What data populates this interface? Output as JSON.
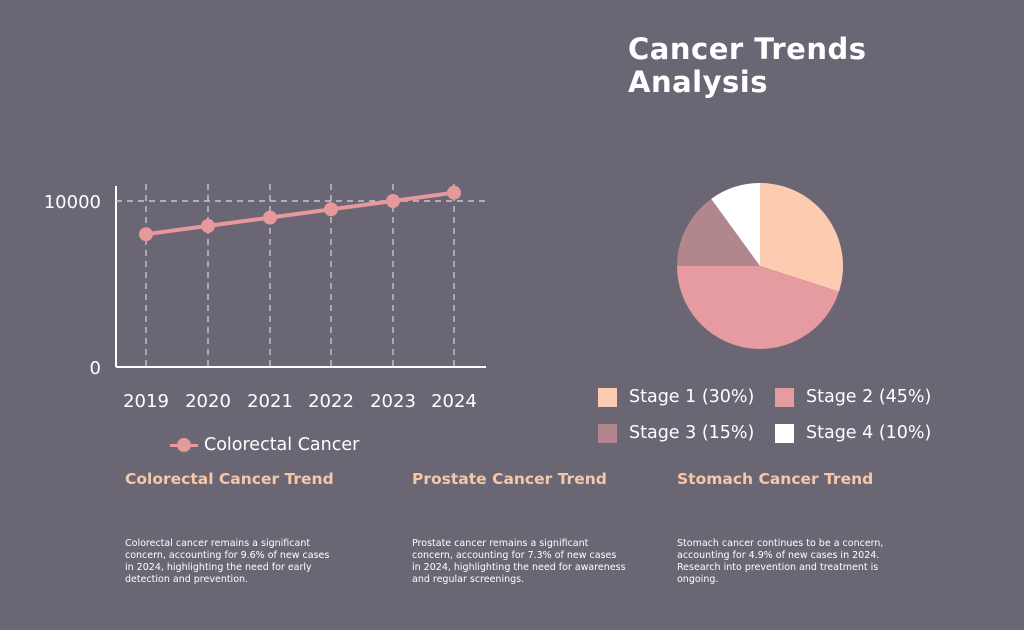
{
  "title": "Cancer Trends Analysis",
  "colors": {
    "background": "#6b6673",
    "line": "#e6999b",
    "heading": "#f6c7a8",
    "stage1": "#fccbb0",
    "stage2": "#e59b9f",
    "stage3": "#b2868d",
    "stage4": "#ffffff"
  },
  "chart_data": [
    {
      "type": "line",
      "x": [
        "2019",
        "2020",
        "2021",
        "2022",
        "2023",
        "2024"
      ],
      "series": [
        {
          "name": "Colorectal Cancer",
          "values": [
            8000,
            8500,
            9000,
            9500,
            10000,
            10500
          ]
        }
      ],
      "yticks": [
        "0",
        "10000"
      ],
      "ylim": [
        0,
        11000
      ],
      "grid": true,
      "legend": "bottom"
    },
    {
      "type": "pie",
      "categories": [
        "Stage 1",
        "Stage 2",
        "Stage 3",
        "Stage 4"
      ],
      "values": [
        30,
        45,
        15,
        10
      ],
      "labels": [
        "Stage 1 (30%)",
        "Stage 2 (45%)",
        "Stage 3 (15%)",
        "Stage 4 (10%)"
      ],
      "legend": "bottom"
    }
  ],
  "cards": [
    {
      "title": "Colorectal Cancer Trend",
      "text": "Colorectal cancer remains a significant concern, accounting for 9.6% of new cases in 2024, highlighting the need for early detection and prevention."
    },
    {
      "title": "Prostate Cancer Trend",
      "text": "Prostate cancer remains a significant concern, accounting for 7.3% of new cases in 2024, highlighting the need for awareness and regular screenings."
    },
    {
      "title": "Stomach Cancer Trend",
      "text": "Stomach cancer continues to be a concern, accounting for 4.9% of new cases in 2024. Research into prevention and treatment is ongoing."
    }
  ]
}
